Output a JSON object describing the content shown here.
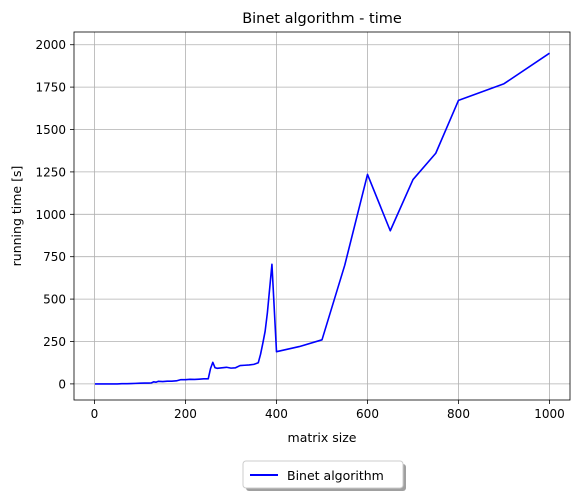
{
  "chart_data": {
    "type": "line",
    "title": "Binet algorithm - time",
    "xlabel": "matrix size",
    "ylabel": "running time [s]",
    "xlim": [
      -45,
      1045
    ],
    "ylim": [
      -95,
      2075
    ],
    "xticks": [
      0,
      200,
      400,
      600,
      800,
      1000
    ],
    "yticks": [
      0,
      250,
      500,
      750,
      1000,
      1250,
      1500,
      1750,
      2000
    ],
    "grid": true,
    "legend_position": "bottom-center",
    "series": [
      {
        "name": "Binet algorithm",
        "color": "#0000ff",
        "x": [
          1,
          10,
          20,
          30,
          40,
          50,
          60,
          70,
          80,
          90,
          100,
          110,
          120,
          125,
          130,
          135,
          140,
          150,
          160,
          170,
          180,
          190,
          200,
          210,
          220,
          230,
          240,
          250,
          255,
          260,
          265,
          270,
          280,
          290,
          300,
          310,
          320,
          330,
          340,
          350,
          360,
          365,
          370,
          375,
          380,
          390,
          400,
          450,
          500,
          550,
          600,
          650,
          700,
          750,
          800,
          900,
          1000
        ],
        "y": [
          0,
          0,
          0,
          0,
          0,
          0,
          1,
          1,
          2,
          3,
          4,
          5,
          5,
          6,
          12,
          10,
          15,
          14,
          16,
          16,
          18,
          25,
          25,
          27,
          26,
          28,
          30,
          30,
          90,
          127,
          95,
          92,
          95,
          98,
          93,
          95,
          108,
          110,
          112,
          115,
          125,
          175,
          240,
          310,
          420,
          705,
          190,
          220,
          260,
          700,
          1235,
          903,
          1205,
          1360,
          1672,
          1770,
          1950
        ]
      }
    ]
  }
}
